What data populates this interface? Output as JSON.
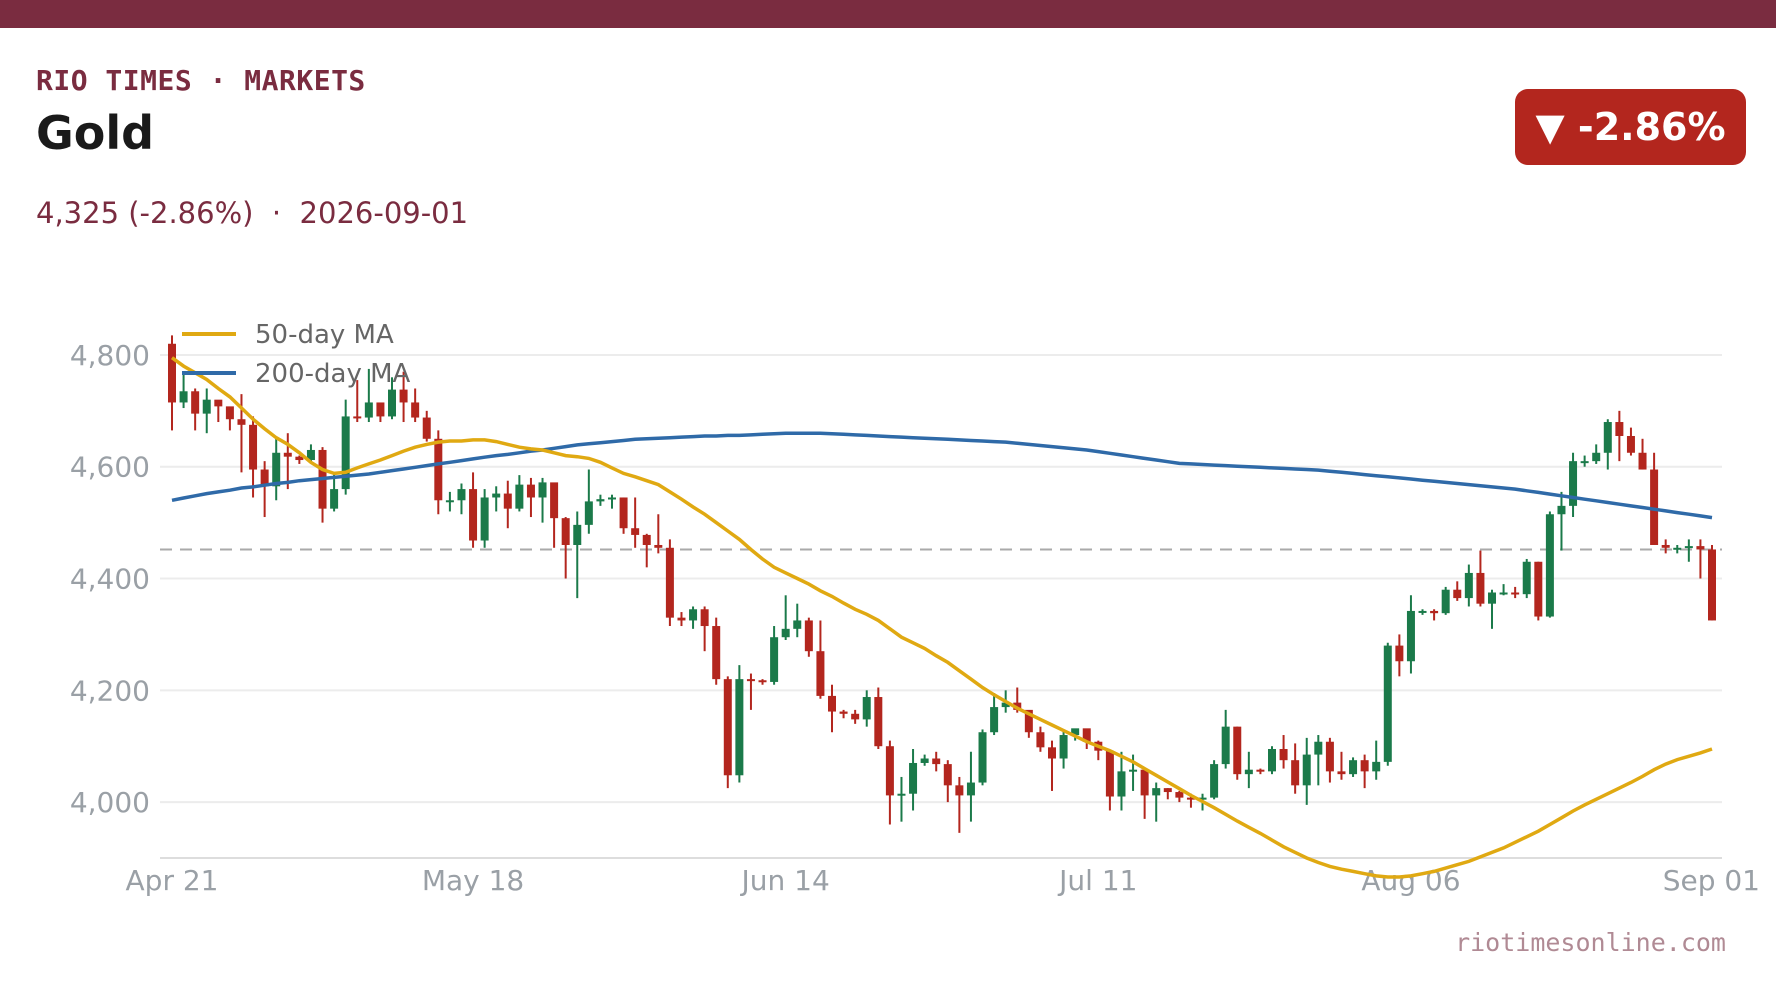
{
  "header": {
    "kicker": "RIO TIMES · MARKETS",
    "title": "Gold",
    "subtitle": "4,325 (-2.86%)  ·  2026-09-01",
    "badge": "▼ -2.86%",
    "source": "riotimesonline.com"
  },
  "colors": {
    "up": "#1b7a4a",
    "down": "#b3261e",
    "ma50": "#e0a912",
    "ma200": "#2f6aa8",
    "brand": "#7a2c40",
    "reference": "#aaaaaa"
  },
  "chart_data": {
    "type": "candlestick",
    "title": "Gold",
    "x_ticks": [
      "Apr 21",
      "May 18",
      "Jun 14",
      "Jul 11",
      "Aug 06",
      "Sep 01"
    ],
    "x_tick_index": [
      0,
      26,
      53,
      80,
      107,
      134
    ],
    "y_ticks": [
      4000,
      4200,
      4400,
      4600,
      4800
    ],
    "y_tick_labels": [
      "4,000",
      "4,200",
      "4,400",
      "4,600",
      "4,800"
    ],
    "ylim": [
      3900,
      4850
    ],
    "grid": true,
    "reference_line": 4452,
    "legend": {
      "position": "top-left",
      "entries": [
        "50-day MA",
        "200-day MA"
      ]
    },
    "first_date": "2026-04-21",
    "last_date": "2026-09-01",
    "closes": [
      4715,
      4735,
      4695,
      4720,
      4708,
      4685,
      4675,
      4595,
      4565,
      4625,
      4618,
      4612,
      4630,
      4525,
      4560,
      4690,
      4688,
      4715,
      4690,
      4738,
      4715,
      4688,
      4650,
      4540,
      4540,
      4560,
      4468,
      4545,
      4552,
      4525,
      4568,
      4545,
      4572,
      4508,
      4460,
      4496,
      4538,
      4542,
      4545,
      4490,
      4478,
      4460,
      4455,
      4330,
      4325,
      4345,
      4315,
      4220,
      4048,
      4220,
      4218,
      4215,
      4295,
      4310,
      4325,
      4270,
      4190,
      4162,
      4158,
      4148,
      4188,
      4100,
      4012,
      4015,
      4070,
      4078,
      4068,
      4030,
      4012,
      4035,
      4125,
      4170,
      4178,
      4165,
      4125,
      4098,
      4078,
      4120,
      4132,
      4108,
      4092,
      4010,
      4055,
      4058,
      4012,
      4025,
      4018,
      4008,
      4005,
      4008,
      4068,
      4135,
      4050,
      4058,
      4055,
      4095,
      4075,
      4030,
      4085,
      4108,
      4055,
      4050,
      4075,
      4055,
      4072,
      4280,
      4252,
      4342,
      4342,
      4338,
      4380,
      4365,
      4410,
      4355,
      4375,
      4375,
      4372,
      4430,
      4332,
      4515,
      4530,
      4610,
      4610,
      4625,
      4680,
      4655,
      4625,
      4595,
      4460,
      4455,
      4455,
      4458,
      4452,
      4325
    ],
    "highs": [
      4835,
      4770,
      4740,
      4740,
      4715,
      4700,
      4730,
      4690,
      4610,
      4650,
      4660,
      4620,
      4640,
      4635,
      4590,
      4720,
      4755,
      4775,
      4710,
      4760,
      4770,
      4740,
      4700,
      4665,
      4555,
      4570,
      4590,
      4560,
      4565,
      4575,
      4585,
      4580,
      4580,
      4545,
      4510,
      4520,
      4595,
      4550,
      4550,
      4545,
      4545,
      4480,
      4515,
      4470,
      4340,
      4350,
      4350,
      4330,
      4225,
      4245,
      4230,
      4220,
      4315,
      4370,
      4355,
      4330,
      4325,
      4210,
      4165,
      4165,
      4200,
      4205,
      4110,
      4045,
      4095,
      4085,
      4090,
      4075,
      4045,
      4090,
      4130,
      4195,
      4200,
      4205,
      4135,
      4135,
      4110,
      4130,
      4125,
      4125,
      4110,
      4080,
      4090,
      4085,
      4060,
      4035,
      4025,
      4020,
      4015,
      4015,
      4075,
      4165,
      4135,
      4090,
      4060,
      4100,
      4120,
      4105,
      4115,
      4120,
      4115,
      4090,
      4080,
      4085,
      4110,
      4285,
      4300,
      4370,
      4345,
      4345,
      4385,
      4395,
      4425,
      4450,
      4380,
      4390,
      4385,
      4435,
      4430,
      4520,
      4555,
      4625,
      4620,
      4640,
      4685,
      4700,
      4670,
      4650,
      4625,
      4470,
      4460,
      4470,
      4470,
      4460
    ],
    "lows": [
      4665,
      4705,
      4665,
      4660,
      4680,
      4665,
      4590,
      4545,
      4510,
      4540,
      4560,
      4605,
      4610,
      4500,
      4520,
      4550,
      4680,
      4680,
      4680,
      4685,
      4680,
      4680,
      4645,
      4515,
      4520,
      4515,
      4455,
      4455,
      4520,
      4490,
      4520,
      4510,
      4500,
      4455,
      4400,
      4365,
      4480,
      4530,
      4525,
      4480,
      4455,
      4420,
      4445,
      4315,
      4315,
      4310,
      4270,
      4210,
      4025,
      4035,
      4165,
      4210,
      4210,
      4290,
      4295,
      4260,
      4185,
      4125,
      4150,
      4140,
      4135,
      4095,
      3960,
      3965,
      3985,
      4065,
      4055,
      4000,
      3945,
      3965,
      4030,
      4120,
      4160,
      4160,
      4115,
      4090,
      4020,
      4060,
      4110,
      4095,
      4075,
      3985,
      3985,
      4020,
      3970,
      3965,
      4005,
      4000,
      3990,
      3985,
      4005,
      4060,
      4040,
      4025,
      4050,
      4050,
      4060,
      4015,
      3995,
      4030,
      4035,
      4040,
      4045,
      4025,
      4040,
      4065,
      4225,
      4230,
      4335,
      4325,
      4335,
      4360,
      4350,
      4350,
      4310,
      4370,
      4365,
      4365,
      4325,
      4330,
      4450,
      4510,
      4600,
      4605,
      4595,
      4610,
      4620,
      4595,
      4570,
      4445,
      4445,
      4430,
      4400,
      4325
    ],
    "ma50": [
      4795,
      4780,
      4768,
      4756,
      4740,
      4725,
      4705,
      4685,
      4668,
      4652,
      4640,
      4625,
      4608,
      4595,
      4588,
      4590,
      4598,
      4605,
      4612,
      4620,
      4628,
      4635,
      4640,
      4644,
      4646,
      4646,
      4648,
      4648,
      4645,
      4640,
      4635,
      4632,
      4630,
      4625,
      4620,
      4618,
      4615,
      4608,
      4598,
      4588,
      4582,
      4575,
      4568,
      4555,
      4542,
      4528,
      4515,
      4500,
      4485,
      4470,
      4452,
      4435,
      4420,
      4410,
      4400,
      4390,
      4378,
      4368,
      4356,
      4345,
      4336,
      4325,
      4310,
      4295,
      4285,
      4275,
      4262,
      4250,
      4235,
      4220,
      4205,
      4192,
      4180,
      4168,
      4158,
      4148,
      4138,
      4128,
      4118,
      4108,
      4100,
      4092,
      4082,
      4072,
      4060,
      4048,
      4036,
      4024,
      4012,
      4001,
      3990,
      3978,
      3966,
      3955,
      3944,
      3932,
      3920,
      3910,
      3900,
      3892,
      3885,
      3880,
      3876,
      3872,
      3868,
      3866,
      3866,
      3868,
      3872,
      3876,
      3882,
      3888,
      3894,
      3902,
      3910,
      3918,
      3928,
      3938,
      3948,
      3960,
      3972,
      3984,
      3995,
      4005,
      4015,
      4025,
      4035,
      4046,
      4058,
      4068,
      4076,
      4082,
      4088,
      4095
    ],
    "ma200": [
      4540,
      4544,
      4548,
      4552,
      4555,
      4558,
      4562,
      4564,
      4567,
      4570,
      4572,
      4575,
      4577,
      4579,
      4581,
      4583,
      4585,
      4587,
      4590,
      4593,
      4596,
      4599,
      4602,
      4605,
      4608,
      4611,
      4614,
      4617,
      4620,
      4622,
      4625,
      4628,
      4630,
      4633,
      4636,
      4639,
      4641,
      4643,
      4645,
      4647,
      4649,
      4650,
      4651,
      4652,
      4653,
      4654,
      4655,
      4655,
      4656,
      4656,
      4657,
      4658,
      4659,
      4660,
      4660,
      4660,
      4660,
      4659,
      4658,
      4657,
      4656,
      4655,
      4654,
      4653,
      4652,
      4651,
      4650,
      4649,
      4648,
      4647,
      4646,
      4645,
      4644,
      4642,
      4640,
      4638,
      4636,
      4634,
      4632,
      4630,
      4627,
      4624,
      4621,
      4618,
      4615,
      4612,
      4609,
      4606,
      4605,
      4604,
      4603,
      4602,
      4601,
      4600,
      4599,
      4598,
      4597,
      4596,
      4595,
      4594,
      4592,
      4590,
      4588,
      4586,
      4584,
      4582,
      4580,
      4578,
      4576,
      4574,
      4572,
      4570,
      4568,
      4566,
      4564,
      4562,
      4560,
      4557,
      4554,
      4551,
      4548,
      4545,
      4542,
      4539,
      4536,
      4533,
      4530,
      4527,
      4524,
      4521,
      4518,
      4515,
      4512,
      4509
    ]
  }
}
